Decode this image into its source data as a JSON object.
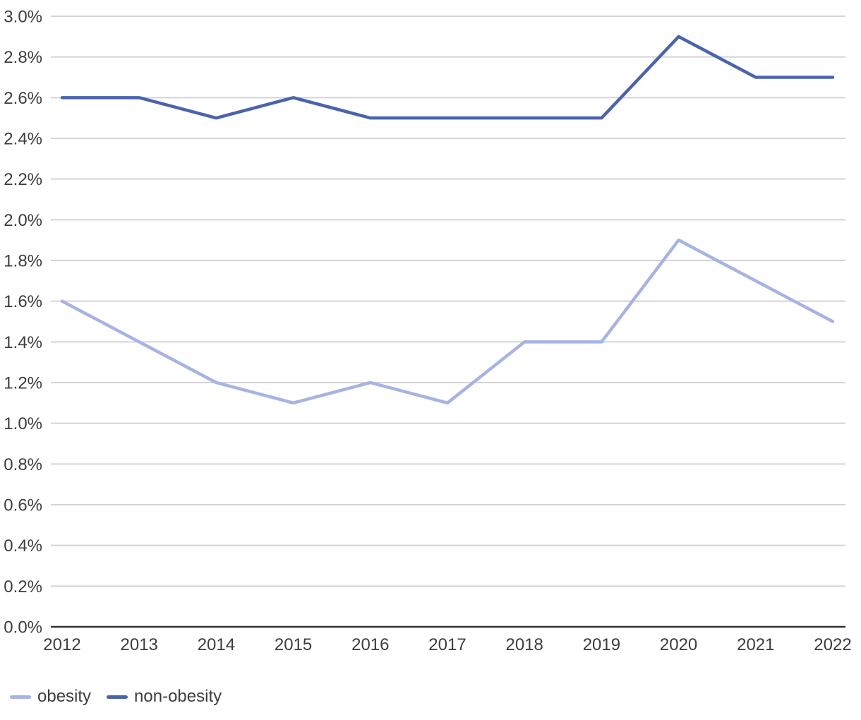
{
  "chart_data": {
    "type": "line",
    "title": "",
    "xlabel": "",
    "ylabel": "",
    "categories": [
      "2012",
      "2013",
      "2014",
      "2015",
      "2016",
      "2017",
      "2018",
      "2019",
      "2020",
      "2021",
      "2022"
    ],
    "series": [
      {
        "name": "obesity",
        "color": "#a6b3e4",
        "values": [
          1.6,
          1.4,
          1.2,
          1.1,
          1.2,
          1.1,
          1.4,
          1.4,
          1.9,
          1.7,
          1.5
        ]
      },
      {
        "name": "non-obesity",
        "color": "#4b63ae",
        "values": [
          2.6,
          2.6,
          2.5,
          2.6,
          2.5,
          2.5,
          2.5,
          2.5,
          2.9,
          2.7,
          2.7
        ]
      }
    ],
    "ylim": [
      0.0,
      3.0
    ],
    "ytick_step": 0.2,
    "ytick_labels": [
      "0.0%",
      "0.2%",
      "0.4%",
      "0.6%",
      "0.8%",
      "1.0%",
      "1.2%",
      "1.4%",
      "1.6%",
      "1.8%",
      "2.0%",
      "2.2%",
      "2.4%",
      "2.6%",
      "2.8%",
      "3.0%"
    ],
    "grid": true,
    "legend_position": "bottom-left",
    "colors": {
      "gridline": "#d4d4d4",
      "axis_line": "#333333",
      "tick_label": "#3d3d3d",
      "background": "#ffffff"
    }
  }
}
